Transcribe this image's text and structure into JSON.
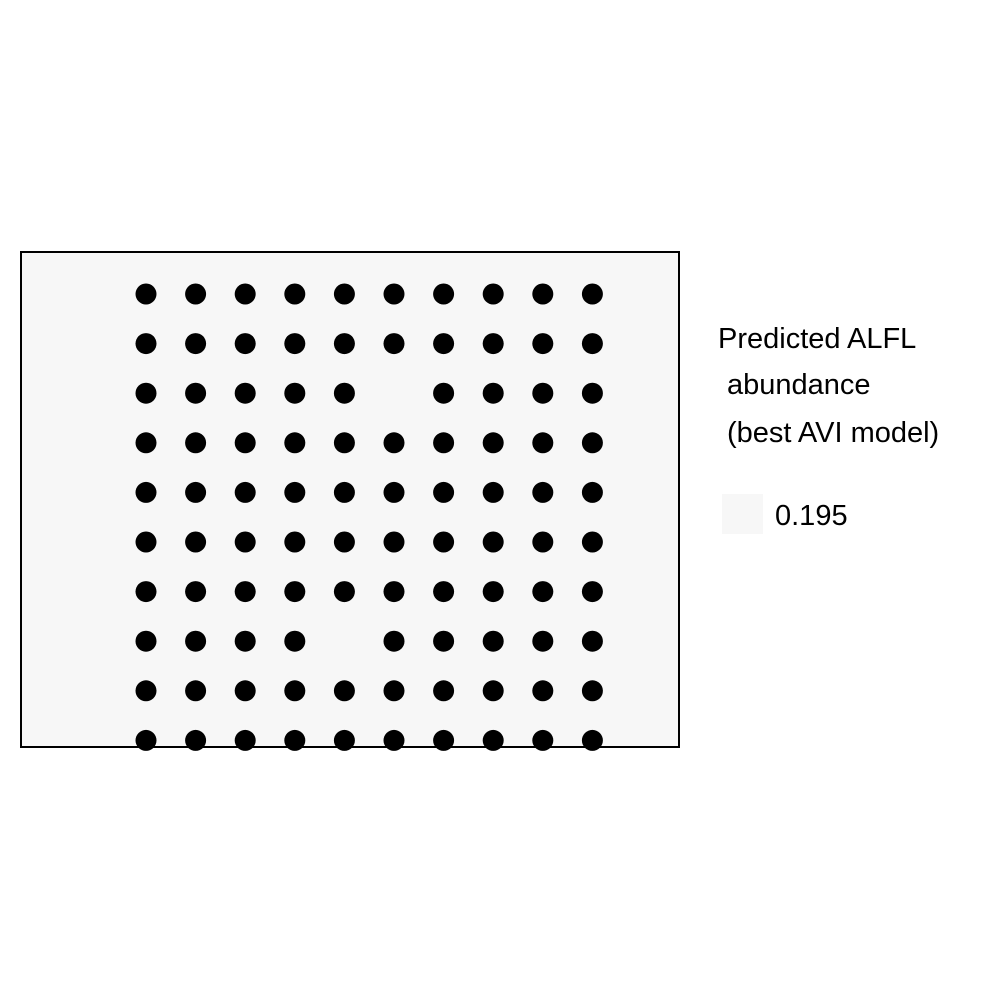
{
  "chart_data": {
    "type": "scatter",
    "title": "",
    "xlabel": "",
    "ylabel": "",
    "grid": false,
    "legend_position": "right",
    "legend": {
      "title_lines": [
        "Predicted ALFL",
        "abundance",
        "(best AVI model)"
      ],
      "entries": [
        {
          "label": "0.195",
          "value": 0.195,
          "color": "#f7f7f7"
        }
      ]
    },
    "columns": 10,
    "rows": 10,
    "points": [
      [
        1,
        1
      ],
      [
        2,
        1
      ],
      [
        3,
        1
      ],
      [
        4,
        1
      ],
      [
        5,
        1
      ],
      [
        6,
        1
      ],
      [
        7,
        1
      ],
      [
        8,
        1
      ],
      [
        9,
        1
      ],
      [
        10,
        1
      ],
      [
        1,
        2
      ],
      [
        2,
        2
      ],
      [
        3,
        2
      ],
      [
        4,
        2
      ],
      [
        5,
        2
      ],
      [
        6,
        2
      ],
      [
        7,
        2
      ],
      [
        8,
        2
      ],
      [
        9,
        2
      ],
      [
        10,
        2
      ],
      [
        1,
        3
      ],
      [
        2,
        3
      ],
      [
        3,
        3
      ],
      [
        4,
        3
      ],
      [
        5,
        3
      ],
      [
        7,
        3
      ],
      [
        8,
        3
      ],
      [
        9,
        3
      ],
      [
        10,
        3
      ],
      [
        1,
        4
      ],
      [
        2,
        4
      ],
      [
        3,
        4
      ],
      [
        4,
        4
      ],
      [
        5,
        4
      ],
      [
        6,
        4
      ],
      [
        7,
        4
      ],
      [
        8,
        4
      ],
      [
        9,
        4
      ],
      [
        10,
        4
      ],
      [
        1,
        5
      ],
      [
        2,
        5
      ],
      [
        3,
        5
      ],
      [
        4,
        5
      ],
      [
        5,
        5
      ],
      [
        6,
        5
      ],
      [
        7,
        5
      ],
      [
        8,
        5
      ],
      [
        9,
        5
      ],
      [
        10,
        5
      ],
      [
        1,
        6
      ],
      [
        2,
        6
      ],
      [
        3,
        6
      ],
      [
        4,
        6
      ],
      [
        5,
        6
      ],
      [
        6,
        6
      ],
      [
        7,
        6
      ],
      [
        8,
        6
      ],
      [
        9,
        6
      ],
      [
        10,
        6
      ],
      [
        1,
        7
      ],
      [
        2,
        7
      ],
      [
        3,
        7
      ],
      [
        4,
        7
      ],
      [
        5,
        7
      ],
      [
        6,
        7
      ],
      [
        7,
        7
      ],
      [
        8,
        7
      ],
      [
        9,
        7
      ],
      [
        10,
        7
      ],
      [
        1,
        8
      ],
      [
        2,
        8
      ],
      [
        3,
        8
      ],
      [
        4,
        8
      ],
      [
        6,
        8
      ],
      [
        7,
        8
      ],
      [
        8,
        8
      ],
      [
        9,
        8
      ],
      [
        10,
        8
      ],
      [
        1,
        9
      ],
      [
        2,
        9
      ],
      [
        3,
        9
      ],
      [
        4,
        9
      ],
      [
        5,
        9
      ],
      [
        6,
        9
      ],
      [
        7,
        9
      ],
      [
        8,
        9
      ],
      [
        9,
        9
      ],
      [
        10,
        9
      ],
      [
        1,
        10
      ],
      [
        2,
        10
      ],
      [
        3,
        10
      ],
      [
        4,
        10
      ],
      [
        5,
        10
      ],
      [
        6,
        10
      ],
      [
        7,
        10
      ],
      [
        8,
        10
      ],
      [
        9,
        10
      ],
      [
        10,
        10
      ]
    ],
    "colors": {
      "panel_fill": "#f7f7f7",
      "panel_border": "#000000",
      "point_fill": "#000000"
    }
  }
}
